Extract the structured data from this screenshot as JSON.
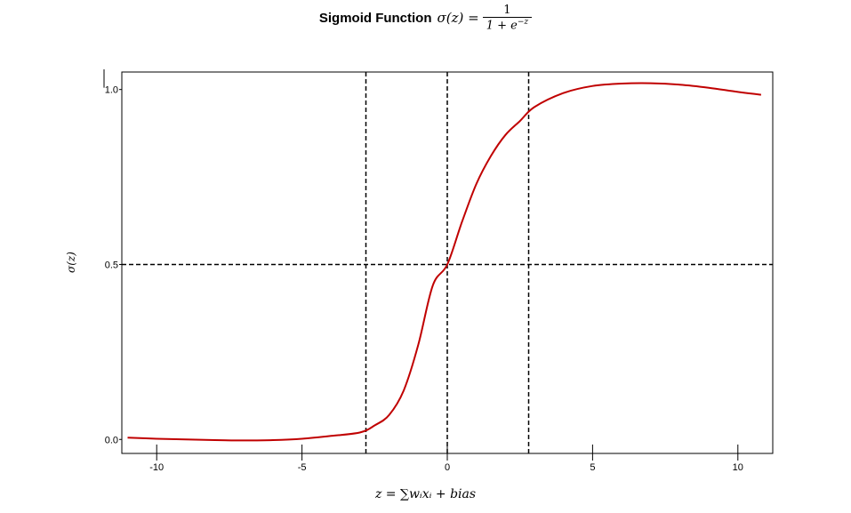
{
  "chart_data": {
    "type": "line",
    "title": "Sigmoid Function",
    "title_formula": "σ(z) =",
    "formula_numerator": "1",
    "formula_denominator": "1 + e",
    "formula_exponent": "−z",
    "xlabel": "z = ∑wᵢxᵢ + bias",
    "ylabel": "σ(z)",
    "xlim": [
      -11.2,
      11.2
    ],
    "ylim": [
      -0.04,
      1.05
    ],
    "xticks": [
      {
        "value": -10,
        "label": "-10"
      },
      {
        "value": -5,
        "label": "-5"
      },
      {
        "value": 0,
        "label": "0"
      },
      {
        "value": 5,
        "label": "5"
      },
      {
        "value": 10,
        "label": "10"
      }
    ],
    "yticks": [
      {
        "value": 0.0,
        "label": "0.0"
      },
      {
        "value": 0.5,
        "label": "0.5"
      },
      {
        "value": 1.0,
        "label": "1.0"
      }
    ],
    "reference_lines": {
      "vertical_x": [
        -2.8,
        0,
        2.8
      ],
      "horizontal_y": [
        0.5
      ],
      "style": "dashed",
      "color": "#000000"
    },
    "series": [
      {
        "color": "#c00000",
        "x": [
          -11,
          -10,
          -9,
          -8,
          -7,
          -6,
          -5,
          -4,
          -3,
          -2.5,
          -2,
          -1.5,
          -1,
          -0.5,
          0,
          0.5,
          1,
          1.5,
          2,
          2.5,
          3,
          4,
          5,
          6,
          7,
          8,
          9,
          10,
          10.8
        ],
        "y": [
          0.005,
          0.002,
          0.0,
          -0.002,
          -0.003,
          -0.002,
          0.002,
          0.01,
          0.02,
          0.04,
          0.07,
          0.14,
          0.27,
          0.44,
          0.5,
          0.62,
          0.73,
          0.81,
          0.87,
          0.91,
          0.95,
          0.99,
          1.01,
          1.017,
          1.018,
          1.014,
          1.005,
          0.993,
          0.985
        ]
      }
    ]
  }
}
